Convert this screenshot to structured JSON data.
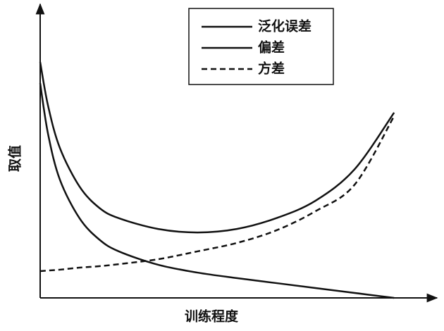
{
  "chart_data": {
    "type": "line",
    "x_label": "训练程度",
    "y_label": "取值",
    "x": [
      0,
      2,
      5,
      10,
      15,
      20,
      30,
      40,
      50,
      60,
      70,
      80,
      90
    ],
    "series": [
      {
        "name": "泛化误差",
        "color": "#111111",
        "dash": "solid",
        "values": [
          81.1,
          66.1,
          51.6,
          38.3,
          31.0,
          27.4,
          23.7,
          22.5,
          23.7,
          27.4,
          33.4,
          44.3,
          63.7
        ]
      },
      {
        "name": "偏差",
        "color": "#111111",
        "dash": "solid",
        "values": [
          73.8,
          56.4,
          40.7,
          27.4,
          20.1,
          16.0,
          11.4,
          8.7,
          6.8,
          5.1,
          3.4,
          1.7,
          0
        ]
      },
      {
        "name": "方差",
        "color": "#111111",
        "dash": "dashed",
        "values": [
          9.2,
          9.4,
          9.7,
          10.4,
          10.9,
          11.6,
          13.3,
          16.0,
          18.9,
          23.2,
          29.8,
          39.0,
          62.5
        ]
      }
    ],
    "xlim": [
      0,
      100
    ],
    "ylim": [
      0,
      100
    ],
    "legend": "top-center"
  }
}
